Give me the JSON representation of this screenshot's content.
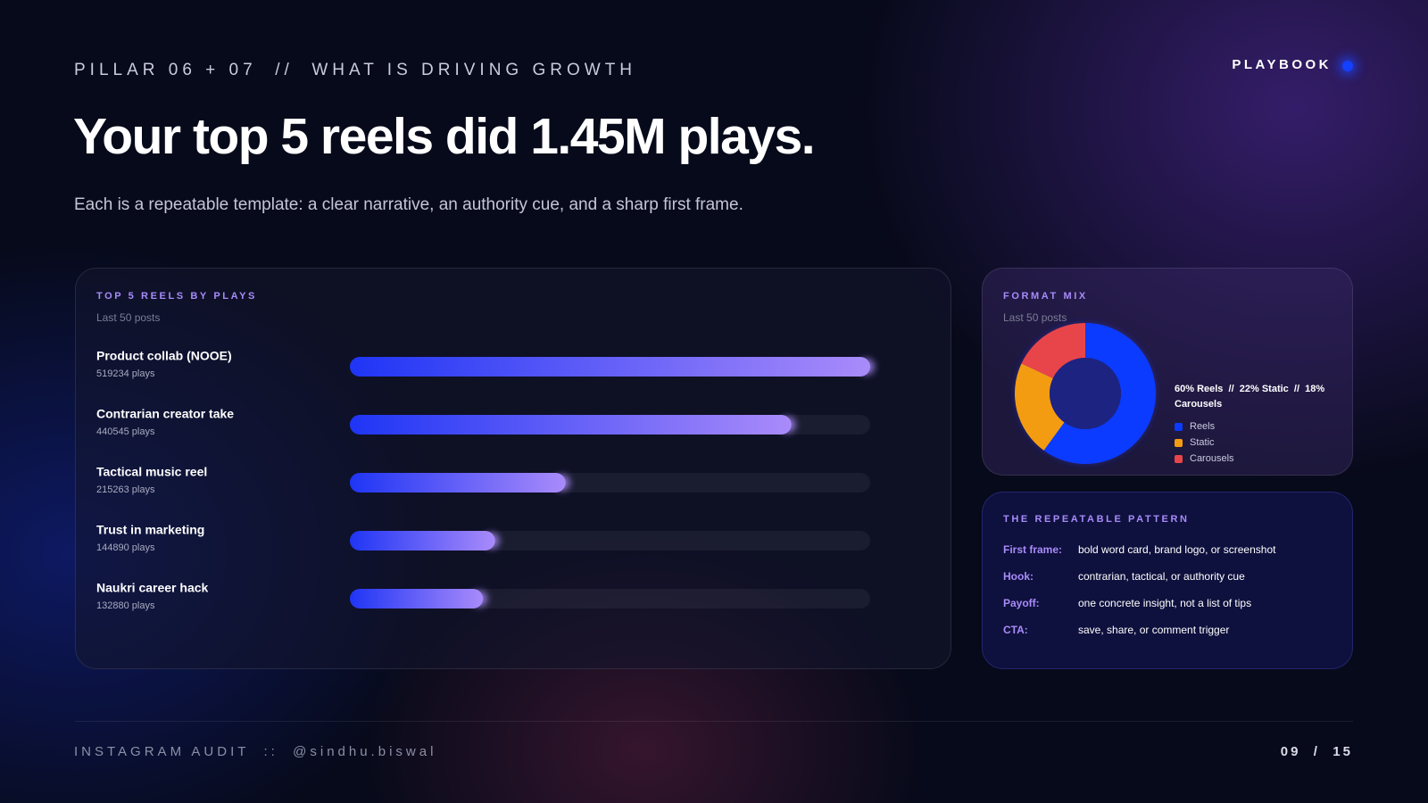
{
  "header": {
    "kicker": "PILLAR 06 + 07  //  WHAT IS DRIVING GROWTH",
    "brand": "PLAYBOOK",
    "title": "Your top 5 reels did 1.45M plays.",
    "subtitle": "Each is a repeatable template: a clear narrative, an authority cue, and a sharp first frame."
  },
  "chart_data": [
    {
      "type": "bar",
      "orientation": "horizontal",
      "title": "TOP 5 REELS BY PLAYS",
      "subtitle": "Last 50 posts",
      "categories": [
        "Product collab (NOOE)",
        "Contrarian creator take",
        "Tactical music reel",
        "Trust in marketing",
        "Naukri career hack"
      ],
      "values": [
        519234,
        440545,
        215263,
        144890,
        132880
      ],
      "value_labels": [
        "519234 plays",
        "440545 plays",
        "215263 plays",
        "144890 plays",
        "132880 plays"
      ],
      "colors": [
        "#1f35f5",
        "#a98bfa"
      ]
    },
    {
      "type": "pie",
      "title": "FORMAT MIX",
      "subtitle": "Last 50 posts",
      "caption": "60% Reels  //  22% Static  //  18% Carousels",
      "categories": [
        "Reels",
        "Static",
        "Carousels"
      ],
      "values": [
        60,
        22,
        18
      ],
      "colors": [
        "#0b3bff",
        "#f39c12",
        "#e8454b"
      ],
      "donut": true
    }
  ],
  "pattern": {
    "title": "THE REPEATABLE PATTERN",
    "rows": [
      [
        "First frame:",
        "bold word card, brand logo, or screenshot"
      ],
      [
        "Hook:",
        "contrarian, tactical, or authority cue"
      ],
      [
        "Payoff:",
        "one concrete insight, not a list of tips"
      ],
      [
        "CTA:",
        "save, share, or comment trigger"
      ]
    ]
  },
  "footer": {
    "left": "INSTAGRAM AUDIT  ::  @sindhu.biswal",
    "page": "09  /  15"
  }
}
